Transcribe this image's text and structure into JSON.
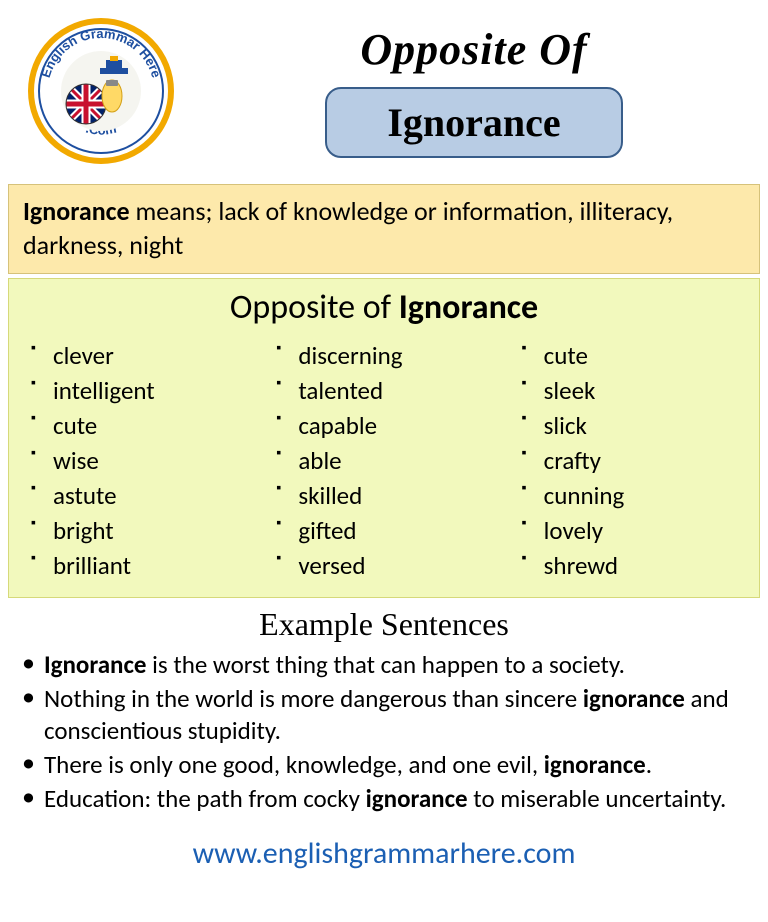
{
  "header": {
    "title_label": "Opposite Of",
    "word": "Ignorance",
    "logo_text_top": "English Grammar Here",
    "logo_text_bottom": ".Com"
  },
  "definition": {
    "word": "Ignorance",
    "text": " means; lack of knowledge or information, illiteracy, darkness, night"
  },
  "opposites": {
    "title_prefix": "Opposite of ",
    "title_word": "Ignorance",
    "col1": [
      "clever",
      "intelligent",
      "cute",
      "wise",
      "astute",
      "bright",
      "brilliant"
    ],
    "col2": [
      "discerning",
      "talented",
      "capable",
      "able",
      "skilled",
      "gifted",
      "versed"
    ],
    "col3": [
      "cute",
      "sleek",
      "slick",
      "crafty",
      "cunning",
      "lovely",
      "shrewd"
    ]
  },
  "examples": {
    "title": "Example  Sentences",
    "items": [
      {
        "pre": "",
        "kw": "Ignorance",
        "post": " is the worst thing that can happen to a society."
      },
      {
        "pre": "Nothing in the world is more dangerous than sincere ",
        "kw": "ignorance",
        "post": " and conscientious stupidity."
      },
      {
        "pre": "There is only one good, knowledge, and one evil, ",
        "kw": "ignorance",
        "post": "."
      },
      {
        "pre": "Education: the path from cocky ",
        "kw": "ignorance",
        "post": " to miserable uncertainty."
      }
    ]
  },
  "footer": {
    "url": "www.englishgrammarhere.com"
  },
  "colors": {
    "definition_bg": "#fde9ab",
    "opposites_bg": "#f2f9bd",
    "word_bg": "#b8cce4",
    "word_border": "#385d8a",
    "link": "#1b5fb3"
  }
}
